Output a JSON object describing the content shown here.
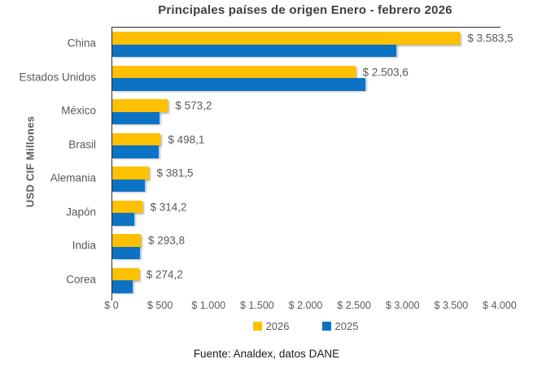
{
  "title": "Principales países de origen Enero - febrero 2026",
  "y_axis_title": "USD CIF Millones",
  "footer": "Fuente: Analdex, datos DANE",
  "colors": {
    "series_2026": "#FFC000",
    "series_2025": "#0B72C4",
    "title_text": "#404040",
    "axis_text": "#595959",
    "axis_line": "#2b2b2b"
  },
  "legend": {
    "position": "bottom-center",
    "items": [
      {
        "label": "2026",
        "color": "#FFC000"
      },
      {
        "label": "2025",
        "color": "#0B72C4"
      }
    ]
  },
  "chart_data": {
    "type": "bar",
    "orientation": "horizontal",
    "title": "Principales países de origen Enero - febrero 2026",
    "ylabel": "USD CIF Millones",
    "xlim": [
      0,
      4000
    ],
    "grid": false,
    "categories": [
      "China",
      "Estados Unidos",
      "México",
      "Brasil",
      "Alemania",
      "Japón",
      "India",
      "Corea"
    ],
    "series": [
      {
        "name": "2026",
        "color": "#FFC000",
        "values": [
          3583.5,
          2503.6,
          573.2,
          498.1,
          381.5,
          314.2,
          293.8,
          274.2
        ],
        "data_labels": [
          "$ 3.583,5",
          "$ 2.503,6",
          "$ 573,2",
          "$ 498,1",
          "$ 381,5",
          "$ 314,2",
          "$ 293,8",
          "$ 274,2"
        ]
      },
      {
        "name": "2025",
        "color": "#0B72C4",
        "estimated_from_pixels": true,
        "values": [
          2930,
          2610,
          485,
          478,
          336,
          230,
          286,
          210
        ],
        "data_labels": []
      }
    ],
    "x_ticks": [
      "$ 0",
      "$ 500",
      "$ 1.000",
      "$ 1.500",
      "$ 2.000",
      "$ 2.500",
      "$ 3.000",
      "$ 3.500",
      "$ 4.000"
    ],
    "x_tick_values": [
      0,
      500,
      1000,
      1500,
      2000,
      2500,
      3000,
      3500,
      4000
    ]
  }
}
